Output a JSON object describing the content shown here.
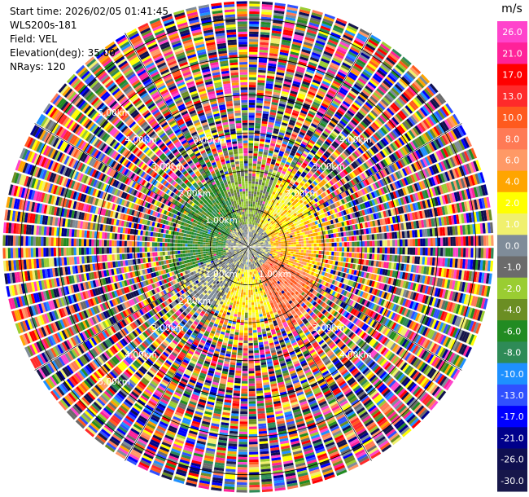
{
  "header": {
    "start_time": "Start time: 2026/02/05 01:41:45",
    "instrument": "WLS200s-181",
    "field": "Field: VEL",
    "elevation": "Elevation(deg): 35.00",
    "nrays": "NRays: 120"
  },
  "chart_data": {
    "type": "heatmap",
    "projection": "polar-ppi",
    "field": "VEL",
    "unit": "m/s",
    "nrays": 120,
    "elevation_deg": 35.0,
    "max_range_km": 6.5,
    "range_rings_km": [
      1.0,
      2.0,
      3.0,
      4.0,
      5.0,
      6.0
    ],
    "ring_labels": [
      {
        "range_km": 1.0,
        "labels": [
          "1.00km",
          "1.00km",
          "1.00km"
        ]
      },
      {
        "range_km": 2.0,
        "labels": [
          "2.00km",
          "2.00km",
          "2.00km"
        ]
      },
      {
        "range_km": 3.0,
        "labels": [
          "3.00km",
          "3.00km",
          "3.00km",
          "3.00km",
          "3.00km"
        ]
      },
      {
        "range_km": 4.0,
        "labels": [
          "4.00km",
          "4.00km",
          "4.00km",
          "4.00km"
        ]
      },
      {
        "range_km": 5.0,
        "labels": [
          "5.00km",
          "5.00km"
        ]
      }
    ],
    "spoke_angles_deg": [
      0,
      30,
      60,
      90,
      120,
      150,
      180,
      210,
      240,
      270,
      300,
      330
    ],
    "colorbar": {
      "ticks": [
        "26.0",
        "21.0",
        "17.0",
        "13.0",
        "10.0",
        "8.0",
        "6.0",
        "4.0",
        "2.0",
        "1.0",
        "0.0",
        "-1.0",
        "-2.0",
        "-4.0",
        "-6.0",
        "-8.0",
        "-10.0",
        "-13.0",
        "-17.0",
        "-21.0",
        "-26.0",
        "-30.0"
      ],
      "colors": [
        "#ff44cc",
        "#ff2299",
        "#ff0000",
        "#ff2a2a",
        "#ff5a1e",
        "#ff7a55",
        "#ff9966",
        "#ffa500",
        "#ffff00",
        "#f0f06e",
        "#7f8c99",
        "#6b6b6b",
        "#9acd32",
        "#6b8e23",
        "#228b22",
        "#2e8b57",
        "#1e90ff",
        "#3050ff",
        "#0000ff",
        "#00008b",
        "#0f0f50",
        "#17174a"
      ]
    },
    "near_field_pattern": [
      {
        "sector": "north-west",
        "dominant_velocity": "-6.0"
      },
      {
        "sector": "north",
        "dominant_velocity": "-2.0"
      },
      {
        "sector": "north-east",
        "dominant_velocity": "2.0"
      },
      {
        "sector": "east",
        "dominant_velocity": "4.0"
      },
      {
        "sector": "south-east",
        "dominant_velocity": "8.0"
      },
      {
        "sector": "south",
        "dominant_velocity": "2.0"
      },
      {
        "sector": "south-west",
        "dominant_velocity": "0.0"
      },
      {
        "sector": "west",
        "dominant_velocity": "-6.0"
      }
    ]
  }
}
